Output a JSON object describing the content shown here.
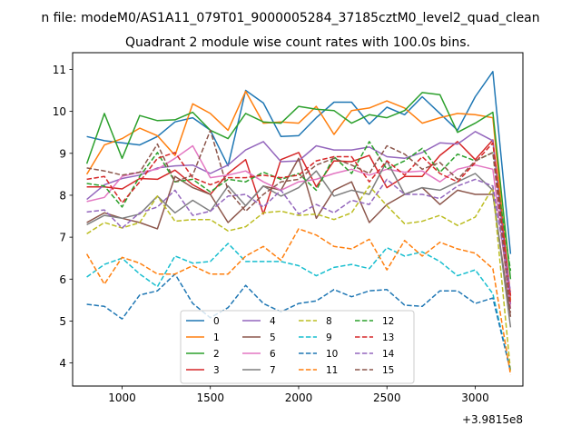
{
  "figure": {
    "suptitle": "n file: modeM0/AS1A11_079T01_9000005284_37185cztM0_level2_quad_clean",
    "title": "Quadrant 2 module wise count rates with 100.0s bins.",
    "offset_label": "+3.9815e8"
  },
  "chart_data": {
    "type": "line",
    "title": "Quadrant 2 module wise count rates with 100.0s bins.",
    "xlabel": "",
    "ylabel": "",
    "x_offset": 398150000,
    "xlim": [
      720,
      3270
    ],
    "ylim": [
      3.45,
      11.4
    ],
    "xticks": [
      1000,
      1500,
      2000,
      2500,
      3000
    ],
    "xtick_labels": [
      "1000",
      "1500",
      "2000",
      "2500",
      "3000"
    ],
    "yticks": [
      4,
      5,
      6,
      7,
      8,
      9,
      10,
      11
    ],
    "ytick_labels": [
      "4",
      "5",
      "6",
      "7",
      "8",
      "9",
      "10",
      "11"
    ],
    "grid": false,
    "legend_position": "lower-center",
    "x": [
      800,
      900,
      1000,
      1100,
      1200,
      1300,
      1400,
      1500,
      1600,
      1700,
      1800,
      1900,
      2000,
      2100,
      2200,
      2300,
      2400,
      2500,
      2600,
      2700,
      2800,
      2900,
      3000,
      3100,
      3200
    ],
    "series": [
      {
        "name": "0",
        "color": "#1f77b4",
        "dash": "solid",
        "values": [
          9.4,
          9.3,
          9.25,
          9.2,
          9.4,
          9.75,
          9.85,
          9.55,
          8.7,
          10.5,
          10.2,
          9.4,
          9.42,
          9.85,
          10.22,
          10.22,
          9.7,
          10.1,
          9.92,
          10.35,
          9.95,
          9.55,
          10.35,
          10.95,
          6.6
        ]
      },
      {
        "name": "1",
        "color": "#ff7f0e",
        "dash": "solid",
        "values": [
          8.5,
          9.2,
          9.35,
          9.6,
          9.42,
          8.95,
          10.18,
          9.95,
          9.55,
          10.48,
          9.72,
          9.75,
          9.72,
          10.12,
          9.45,
          10.02,
          10.08,
          10.25,
          10.08,
          9.72,
          9.85,
          9.95,
          9.92,
          9.85,
          5.5
        ]
      },
      {
        "name": "2",
        "color": "#2ca02c",
        "dash": "solid",
        "values": [
          8.75,
          9.95,
          8.88,
          9.9,
          9.78,
          9.8,
          9.98,
          9.55,
          9.35,
          9.95,
          9.75,
          9.72,
          10.12,
          10.05,
          10.02,
          9.72,
          9.92,
          9.85,
          10.02,
          10.45,
          10.4,
          9.5,
          9.72,
          9.98,
          6.0
        ]
      },
      {
        "name": "3",
        "color": "#d62728",
        "dash": "solid",
        "values": [
          8.2,
          8.2,
          8.15,
          8.4,
          8.38,
          8.6,
          8.25,
          8.02,
          8.52,
          8.85,
          7.55,
          8.85,
          9.02,
          8.2,
          8.82,
          8.8,
          8.95,
          8.18,
          8.45,
          8.45,
          8.95,
          9.28,
          8.85,
          9.32,
          5.6
        ]
      },
      {
        "name": "4",
        "color": "#9467bd",
        "dash": "solid",
        "values": [
          7.9,
          8.25,
          8.4,
          8.48,
          8.65,
          8.7,
          8.72,
          8.52,
          8.72,
          9.08,
          9.28,
          8.8,
          8.82,
          9.18,
          9.08,
          9.08,
          9.15,
          8.92,
          8.88,
          9.02,
          9.25,
          9.22,
          9.52,
          9.3,
          5.4
        ]
      },
      {
        "name": "5",
        "color": "#8c564b",
        "dash": "solid",
        "values": [
          7.35,
          7.58,
          7.45,
          7.35,
          7.2,
          8.45,
          8.18,
          8.02,
          7.35,
          7.75,
          8.22,
          8.12,
          8.88,
          7.45,
          8.12,
          8.32,
          7.35,
          7.78,
          8.02,
          8.18,
          7.78,
          8.12,
          8.02,
          8.02,
          5.1
        ]
      },
      {
        "name": "6",
        "color": "#e377c2",
        "dash": "solid",
        "values": [
          7.85,
          7.95,
          8.45,
          8.55,
          8.62,
          8.88,
          9.18,
          8.42,
          8.48,
          8.58,
          8.32,
          8.12,
          8.32,
          8.38,
          8.52,
          8.62,
          8.48,
          8.62,
          8.55,
          8.58,
          8.32,
          8.62,
          8.72,
          8.62,
          5.3
        ]
      },
      {
        "name": "7",
        "color": "#7f7f7f",
        "dash": "solid",
        "values": [
          7.3,
          7.52,
          7.45,
          7.55,
          7.98,
          7.58,
          7.88,
          7.62,
          8.22,
          7.75,
          8.22,
          7.98,
          8.18,
          8.58,
          7.98,
          8.12,
          8.02,
          8.82,
          8.02,
          8.18,
          8.12,
          8.32,
          8.52,
          8.12,
          4.85
        ]
      },
      {
        "name": "8",
        "color": "#bcbd22",
        "dash": "dashed",
        "values": [
          7.08,
          7.35,
          7.22,
          7.35,
          7.98,
          7.38,
          7.42,
          7.42,
          7.15,
          7.25,
          7.58,
          7.62,
          7.52,
          7.55,
          7.42,
          7.58,
          8.22,
          7.75,
          7.32,
          7.38,
          7.52,
          7.28,
          7.48,
          8.18,
          3.8
        ]
      },
      {
        "name": "9",
        "color": "#17becf",
        "dash": "dashed",
        "values": [
          6.05,
          6.35,
          6.5,
          6.12,
          5.82,
          6.55,
          6.38,
          6.42,
          6.85,
          6.42,
          6.42,
          6.42,
          6.32,
          6.08,
          6.28,
          6.35,
          6.25,
          6.75,
          6.55,
          6.65,
          6.42,
          6.08,
          6.22,
          5.65,
          3.8
        ]
      },
      {
        "name": "10",
        "color": "#1f77b4",
        "dash": "dashed",
        "values": [
          5.4,
          5.35,
          5.05,
          5.62,
          5.72,
          6.12,
          5.42,
          5.08,
          5.32,
          5.85,
          5.42,
          5.22,
          5.42,
          5.48,
          5.75,
          5.58,
          5.72,
          5.75,
          5.38,
          5.35,
          5.72,
          5.72,
          5.42,
          5.55,
          3.8
        ]
      },
      {
        "name": "11",
        "color": "#ff7f0e",
        "dash": "dashed",
        "values": [
          6.6,
          5.88,
          6.52,
          6.38,
          6.12,
          6.12,
          6.32,
          6.12,
          6.12,
          6.55,
          6.78,
          6.45,
          7.2,
          7.05,
          6.78,
          6.72,
          6.95,
          6.22,
          6.92,
          6.55,
          6.88,
          6.72,
          6.62,
          6.25,
          3.72
        ]
      },
      {
        "name": "12",
        "color": "#2ca02c",
        "dash": "dashed",
        "values": [
          8.28,
          8.22,
          7.72,
          8.45,
          9.02,
          8.32,
          8.38,
          8.08,
          8.38,
          8.32,
          8.55,
          8.38,
          8.52,
          8.12,
          8.92,
          8.52,
          9.28,
          8.62,
          8.82,
          9.12,
          8.55,
          8.98,
          8.82,
          9.02,
          6.2
        ]
      },
      {
        "name": "13",
        "color": "#d62728",
        "dash": "dashed",
        "values": [
          8.38,
          8.45,
          7.82,
          8.32,
          8.88,
          9.02,
          8.42,
          8.25,
          8.42,
          8.42,
          8.48,
          8.42,
          8.48,
          8.82,
          8.92,
          8.92,
          8.32,
          8.82,
          8.48,
          8.92,
          8.52,
          8.32,
          8.78,
          9.25,
          5.4
        ]
      },
      {
        "name": "14",
        "color": "#9467bd",
        "dash": "dashed",
        "values": [
          7.6,
          7.65,
          7.22,
          7.58,
          7.72,
          8.12,
          7.52,
          7.62,
          7.98,
          8.02,
          7.72,
          8.12,
          7.55,
          7.78,
          7.58,
          7.88,
          7.78,
          8.38,
          8.02,
          8.02,
          7.92,
          8.22,
          8.38,
          8.22,
          5.7
        ]
      },
      {
        "name": "15",
        "color": "#8c564b",
        "dash": "dashed",
        "values": [
          8.65,
          8.58,
          8.48,
          8.55,
          9.22,
          8.32,
          8.48,
          9.55,
          8.12,
          7.62,
          8.02,
          8.32,
          8.38,
          8.72,
          8.88,
          8.72,
          8.52,
          9.18,
          8.98,
          8.62,
          8.78,
          8.38,
          8.82,
          9.02,
          5.2
        ]
      }
    ]
  }
}
